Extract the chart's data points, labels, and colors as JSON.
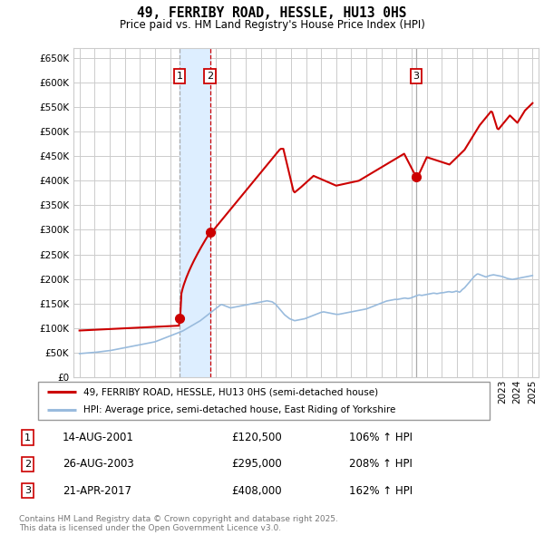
{
  "title": "49, FERRIBY ROAD, HESSLE, HU13 0HS",
  "subtitle": "Price paid vs. HM Land Registry's House Price Index (HPI)",
  "ylim": [
    0,
    670000
  ],
  "xlim_start": 1994.6,
  "xlim_end": 2025.4,
  "transactions": [
    {
      "num": 1,
      "date": "14-AUG-2001",
      "price": 120500,
      "pct": "106% ↑ HPI",
      "year": 2001.62
    },
    {
      "num": 2,
      "date": "26-AUG-2003",
      "price": 295000,
      "pct": "208% ↑ HPI",
      "year": 2003.65
    },
    {
      "num": 3,
      "date": "21-APR-2017",
      "price": 408000,
      "pct": "162% ↑ HPI",
      "year": 2017.3
    }
  ],
  "legend_line1_label": "49, FERRIBY ROAD, HESSLE, HU13 0HS (semi-detached house)",
  "legend_line2_label": "HPI: Average price, semi-detached house, East Riding of Yorkshire",
  "footer": "Contains HM Land Registry data © Crown copyright and database right 2025.\nThis data is licensed under the Open Government Licence v3.0.",
  "line_color_red": "#cc0000",
  "line_color_blue": "#99bbdd",
  "background_color": "#ffffff",
  "grid_color": "#cccccc",
  "shade_color": "#ddeeff",
  "hpi_x": [
    1995.0,
    1995.083,
    1995.167,
    1995.25,
    1995.333,
    1995.417,
    1995.5,
    1995.583,
    1995.667,
    1995.75,
    1995.833,
    1995.917,
    1996.0,
    1996.083,
    1996.167,
    1996.25,
    1996.333,
    1996.417,
    1996.5,
    1996.583,
    1996.667,
    1996.75,
    1996.833,
    1996.917,
    1997.0,
    1997.083,
    1997.167,
    1997.25,
    1997.333,
    1997.417,
    1997.5,
    1997.583,
    1997.667,
    1997.75,
    1997.833,
    1997.917,
    1998.0,
    1998.083,
    1998.167,
    1998.25,
    1998.333,
    1998.417,
    1998.5,
    1998.583,
    1998.667,
    1998.75,
    1998.833,
    1998.917,
    1999.0,
    1999.083,
    1999.167,
    1999.25,
    1999.333,
    1999.417,
    1999.5,
    1999.583,
    1999.667,
    1999.75,
    1999.833,
    1999.917,
    2000.0,
    2000.083,
    2000.167,
    2000.25,
    2000.333,
    2000.417,
    2000.5,
    2000.583,
    2000.667,
    2000.75,
    2000.833,
    2000.917,
    2001.0,
    2001.083,
    2001.167,
    2001.25,
    2001.333,
    2001.417,
    2001.5,
    2001.583,
    2001.667,
    2001.75,
    2001.833,
    2001.917,
    2002.0,
    2002.083,
    2002.167,
    2002.25,
    2002.333,
    2002.417,
    2002.5,
    2002.583,
    2002.667,
    2002.75,
    2002.833,
    2002.917,
    2003.0,
    2003.083,
    2003.167,
    2003.25,
    2003.333,
    2003.417,
    2003.5,
    2003.583,
    2003.667,
    2003.75,
    2003.833,
    2003.917,
    2004.0,
    2004.083,
    2004.167,
    2004.25,
    2004.333,
    2004.417,
    2004.5,
    2004.583,
    2004.667,
    2004.75,
    2004.833,
    2004.917,
    2005.0,
    2005.083,
    2005.167,
    2005.25,
    2005.333,
    2005.417,
    2005.5,
    2005.583,
    2005.667,
    2005.75,
    2005.833,
    2005.917,
    2006.0,
    2006.083,
    2006.167,
    2006.25,
    2006.333,
    2006.417,
    2006.5,
    2006.583,
    2006.667,
    2006.75,
    2006.833,
    2006.917,
    2007.0,
    2007.083,
    2007.167,
    2007.25,
    2007.333,
    2007.417,
    2007.5,
    2007.583,
    2007.667,
    2007.75,
    2007.833,
    2007.917,
    2008.0,
    2008.083,
    2008.167,
    2008.25,
    2008.333,
    2008.417,
    2008.5,
    2008.583,
    2008.667,
    2008.75,
    2008.833,
    2008.917,
    2009.0,
    2009.083,
    2009.167,
    2009.25,
    2009.333,
    2009.417,
    2009.5,
    2009.583,
    2009.667,
    2009.75,
    2009.833,
    2009.917,
    2010.0,
    2010.083,
    2010.167,
    2010.25,
    2010.333,
    2010.417,
    2010.5,
    2010.583,
    2010.667,
    2010.75,
    2010.833,
    2010.917,
    2011.0,
    2011.083,
    2011.167,
    2011.25,
    2011.333,
    2011.417,
    2011.5,
    2011.583,
    2011.667,
    2011.75,
    2011.833,
    2011.917,
    2012.0,
    2012.083,
    2012.167,
    2012.25,
    2012.333,
    2012.417,
    2012.5,
    2012.583,
    2012.667,
    2012.75,
    2012.833,
    2012.917,
    2013.0,
    2013.083,
    2013.167,
    2013.25,
    2013.333,
    2013.417,
    2013.5,
    2013.583,
    2013.667,
    2013.75,
    2013.833,
    2013.917,
    2014.0,
    2014.083,
    2014.167,
    2014.25,
    2014.333,
    2014.417,
    2014.5,
    2014.583,
    2014.667,
    2014.75,
    2014.833,
    2014.917,
    2015.0,
    2015.083,
    2015.167,
    2015.25,
    2015.333,
    2015.417,
    2015.5,
    2015.583,
    2015.667,
    2015.75,
    2015.833,
    2015.917,
    2016.0,
    2016.083,
    2016.167,
    2016.25,
    2016.333,
    2016.417,
    2016.5,
    2016.583,
    2016.667,
    2016.75,
    2016.833,
    2016.917,
    2017.0,
    2017.083,
    2017.167,
    2017.25,
    2017.333,
    2017.417,
    2017.5,
    2017.583,
    2017.667,
    2017.75,
    2017.833,
    2017.917,
    2018.0,
    2018.083,
    2018.167,
    2018.25,
    2018.333,
    2018.417,
    2018.5,
    2018.583,
    2018.667,
    2018.75,
    2018.833,
    2018.917,
    2019.0,
    2019.083,
    2019.167,
    2019.25,
    2019.333,
    2019.417,
    2019.5,
    2019.583,
    2019.667,
    2019.75,
    2019.833,
    2019.917,
    2020.0,
    2020.083,
    2020.167,
    2020.25,
    2020.333,
    2020.417,
    2020.5,
    2020.583,
    2020.667,
    2020.75,
    2020.833,
    2020.917,
    2021.0,
    2021.083,
    2021.167,
    2021.25,
    2021.333,
    2021.417,
    2021.5,
    2021.583,
    2021.667,
    2021.75,
    2021.833,
    2021.917,
    2022.0,
    2022.083,
    2022.167,
    2022.25,
    2022.333,
    2022.417,
    2022.5,
    2022.583,
    2022.667,
    2022.75,
    2022.833,
    2022.917,
    2023.0,
    2023.083,
    2023.167,
    2023.25,
    2023.333,
    2023.417,
    2023.5,
    2023.583,
    2023.667,
    2023.75,
    2023.833,
    2023.917,
    2024.0,
    2024.083,
    2024.167,
    2024.25,
    2024.333,
    2024.417,
    2024.5,
    2024.583,
    2024.667,
    2024.75,
    2024.833,
    2024.917,
    2025.0
  ],
  "hpi_y": [
    48000,
    48200,
    48400,
    48600,
    48800,
    49000,
    49200,
    49400,
    49600,
    49800,
    50000,
    50200,
    50500,
    50700,
    51000,
    51300,
    51600,
    51900,
    52200,
    52500,
    52800,
    53100,
    53400,
    53700,
    54000,
    54500,
    55000,
    55500,
    56000,
    56500,
    57000,
    57500,
    58000,
    58500,
    59000,
    59500,
    60000,
    60500,
    61000,
    61500,
    62000,
    62500,
    63000,
    63500,
    64000,
    64500,
    65000,
    65500,
    66000,
    66500,
    67000,
    67500,
    68000,
    68500,
    69000,
    69500,
    70000,
    70500,
    71000,
    71500,
    72000,
    73000,
    74000,
    75000,
    76000,
    77000,
    78000,
    79000,
    80000,
    81000,
    82000,
    83000,
    84000,
    85000,
    86000,
    87000,
    88000,
    89000,
    90000,
    91000,
    92000,
    93000,
    94000,
    95500,
    97000,
    98500,
    100000,
    101500,
    103000,
    104500,
    106000,
    107500,
    109000,
    110500,
    112000,
    113500,
    115000,
    117000,
    119000,
    121000,
    123000,
    125000,
    127000,
    129000,
    131000,
    133000,
    135000,
    137000,
    139000,
    141000,
    143000,
    145000,
    147000,
    148000,
    147000,
    146000,
    145000,
    144000,
    143000,
    142000,
    141000,
    141500,
    142000,
    142500,
    143000,
    143500,
    144000,
    144500,
    145000,
    145500,
    146000,
    146500,
    147000,
    147500,
    148000,
    148500,
    149000,
    149500,
    150000,
    150500,
    151000,
    151500,
    152000,
    152500,
    153000,
    153500,
    154000,
    154500,
    155000,
    155500,
    155000,
    154500,
    154000,
    153500,
    152000,
    150000,
    148000,
    145000,
    142000,
    139000,
    136000,
    133000,
    130000,
    127000,
    125000,
    123000,
    121000,
    119000,
    118000,
    117000,
    116000,
    115000,
    115500,
    116000,
    116500,
    117000,
    117500,
    118000,
    118500,
    119000,
    120000,
    121000,
    122000,
    123000,
    124000,
    125000,
    126000,
    127000,
    128000,
    129000,
    130000,
    131000,
    132000,
    132500,
    133000,
    132500,
    132000,
    131500,
    131000,
    130500,
    130000,
    129500,
    129000,
    128500,
    128000,
    128000,
    128000,
    128500,
    129000,
    129500,
    130000,
    130500,
    131000,
    131500,
    132000,
    132500,
    133000,
    133500,
    134000,
    134500,
    135000,
    135500,
    136000,
    136500,
    137000,
    137500,
    138000,
    138500,
    139000,
    140000,
    141000,
    142000,
    143000,
    144000,
    145000,
    146000,
    147000,
    148000,
    149000,
    150000,
    151000,
    152000,
    153000,
    154000,
    155000,
    155500,
    156000,
    156500,
    157000,
    157500,
    158000,
    158500,
    158000,
    158500,
    159000,
    159500,
    160000,
    160500,
    161000,
    161000,
    160500,
    160000,
    160500,
    161000,
    162000,
    163000,
    164000,
    165000,
    166000,
    167000,
    167500,
    167000,
    166500,
    167000,
    167500,
    168000,
    168500,
    169000,
    169500,
    170000,
    170500,
    171000,
    171000,
    170500,
    170000,
    170500,
    171000,
    171500,
    172000,
    172000,
    172500,
    173000,
    173500,
    174000,
    174000,
    173500,
    173000,
    173500,
    174000,
    175000,
    175000,
    174000,
    173000,
    175000,
    178000,
    180000,
    182000,
    185000,
    188000,
    191000,
    194000,
    197000,
    200000,
    203000,
    206000,
    208000,
    210000,
    210000,
    209000,
    208000,
    207000,
    206000,
    205000,
    204000,
    205000,
    206000,
    207000,
    207500,
    208000,
    208500,
    208000,
    207500,
    207000,
    206500,
    206000,
    205500,
    205000,
    204000,
    203000,
    202000,
    201000,
    200500,
    200000,
    199500,
    199000,
    199500,
    200000,
    200500,
    201000,
    201500,
    202000,
    202500,
    203000,
    203500,
    204000,
    204500,
    205000,
    205500,
    206000,
    206500,
    207000
  ]
}
